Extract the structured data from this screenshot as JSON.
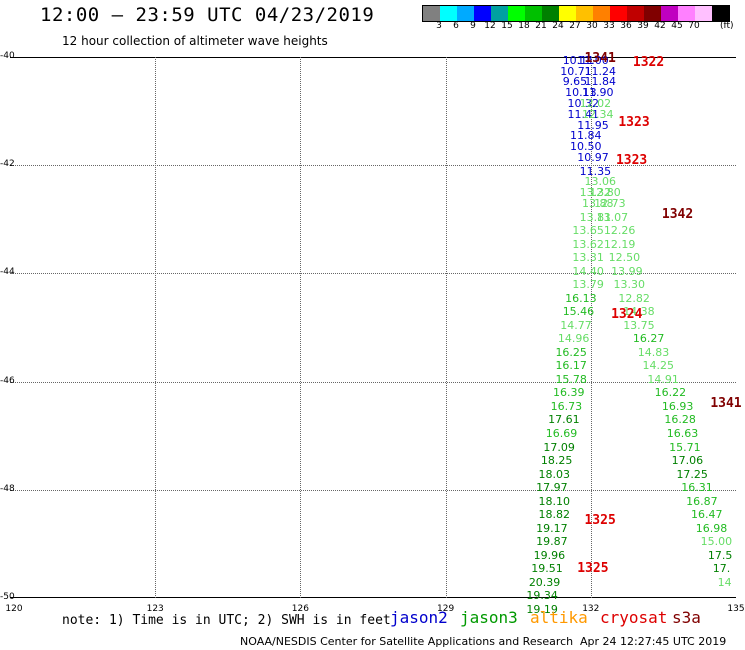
{
  "header": {
    "title": "12:00 – 23:59 UTC 04/23/2019",
    "subtitle": "12 hour collection of altimeter wave heights"
  },
  "colorbar": {
    "colors": [
      "#808080",
      "#00ffff",
      "#00aaff",
      "#0000ff",
      "#00a0a0",
      "#00ff00",
      "#00c000",
      "#008000",
      "#ffff00",
      "#ffc000",
      "#ff8000",
      "#ff0000",
      "#c00000",
      "#800000",
      "#c000c0",
      "#ff80ff",
      "#ffc0ff",
      "#000000"
    ],
    "labels": [
      "3",
      "6",
      "9",
      "12",
      "15",
      "18",
      "21",
      "24",
      "27",
      "30",
      "33",
      "36",
      "39",
      "42",
      "45",
      "70"
    ],
    "unit": "(ft)"
  },
  "axes": {
    "y_labels": [
      "-40",
      "-42",
      "-44",
      "-46",
      "-48",
      "-50"
    ],
    "x_labels": [
      "120",
      "123",
      "126",
      "129",
      "132",
      "135"
    ]
  },
  "chart_data": {
    "type": "scatter",
    "x_range": [
      120,
      135
    ],
    "y_range": [
      -50,
      -40
    ],
    "points": [
      {
        "lon": 131.75,
        "lat": -40.05,
        "v": "10.11",
        "c": "#0000cc"
      },
      {
        "lon": 132.05,
        "lat": -40.05,
        "v": "11.00",
        "c": "#0000cc"
      },
      {
        "lon": 131.7,
        "lat": -40.25,
        "v": "10.71",
        "c": "#0000cc"
      },
      {
        "lon": 132.2,
        "lat": -40.25,
        "v": "11.24",
        "c": "#0000cc"
      },
      {
        "lon": 131.75,
        "lat": -40.45,
        "v": "9.65",
        "c": "#0000cc"
      },
      {
        "lon": 132.2,
        "lat": -40.45,
        "v": "11.84",
        "c": "#0000cc"
      },
      {
        "lon": 131.8,
        "lat": -40.65,
        "v": "10.13",
        "c": "#0000cc"
      },
      {
        "lon": 132.15,
        "lat": -40.65,
        "v": "11.90",
        "c": "#0000cc"
      },
      {
        "lon": 131.85,
        "lat": -40.85,
        "v": "10.32",
        "c": "#0000cc"
      },
      {
        "lon": 132.1,
        "lat": -40.85,
        "v": "12.02",
        "c": "#66dd66"
      },
      {
        "lon": 131.85,
        "lat": -41.05,
        "v": "11.41",
        "c": "#0000cc"
      },
      {
        "lon": 132.15,
        "lat": -41.05,
        "v": "12.34",
        "c": "#66dd66"
      },
      {
        "lon": 132.05,
        "lat": -41.25,
        "v": "11.95",
        "c": "#0000cc"
      },
      {
        "lon": 131.9,
        "lat": -41.45,
        "v": "11.84",
        "c": "#0000cc"
      },
      {
        "lon": 131.9,
        "lat": -41.65,
        "v": "10.50",
        "c": "#0000cc"
      },
      {
        "lon": 132.05,
        "lat": -41.85,
        "v": "10.97",
        "c": "#0000cc"
      },
      {
        "lon": 132.1,
        "lat": -42.1,
        "v": "11.35",
        "c": "#0000cc"
      },
      {
        "lon": 132.2,
        "lat": -42.3,
        "v": "13.06",
        "c": "#66dd66"
      },
      {
        "lon": 132.1,
        "lat": -42.5,
        "v": "13.32",
        "c": "#66dd66"
      },
      {
        "lon": 132.3,
        "lat": -42.5,
        "v": "12.80",
        "c": "#66dd66"
      },
      {
        "lon": 132.15,
        "lat": -42.7,
        "v": "13.88",
        "c": "#66dd66"
      },
      {
        "lon": 132.4,
        "lat": -42.7,
        "v": "12.73",
        "c": "#66dd66"
      },
      {
        "lon": 132.1,
        "lat": -42.95,
        "v": "13.81",
        "c": "#66dd66"
      },
      {
        "lon": 132.45,
        "lat": -42.95,
        "v": "13.07",
        "c": "#66dd66"
      },
      {
        "lon": 131.95,
        "lat": -43.2,
        "v": "13.65",
        "c": "#66dd66"
      },
      {
        "lon": 132.6,
        "lat": -43.2,
        "v": "12.26",
        "c": "#66dd66"
      },
      {
        "lon": 131.95,
        "lat": -43.45,
        "v": "13.62",
        "c": "#66dd66"
      },
      {
        "lon": 132.6,
        "lat": -43.45,
        "v": "12.19",
        "c": "#66dd66"
      },
      {
        "lon": 131.95,
        "lat": -43.7,
        "v": "13.31",
        "c": "#66dd66"
      },
      {
        "lon": 132.7,
        "lat": -43.7,
        "v": "12.50",
        "c": "#66dd66"
      },
      {
        "lon": 131.95,
        "lat": -43.95,
        "v": "14.40",
        "c": "#66dd66"
      },
      {
        "lon": 132.75,
        "lat": -43.95,
        "v": "13.99",
        "c": "#66dd66"
      },
      {
        "lon": 131.95,
        "lat": -44.2,
        "v": "13.79",
        "c": "#66dd66"
      },
      {
        "lon": 132.8,
        "lat": -44.2,
        "v": "13.30",
        "c": "#66dd66"
      },
      {
        "lon": 131.8,
        "lat": -44.45,
        "v": "16.13",
        "c": "#22bb22"
      },
      {
        "lon": 132.9,
        "lat": -44.45,
        "v": "12.82",
        "c": "#66dd66"
      },
      {
        "lon": 131.75,
        "lat": -44.7,
        "v": "15.46",
        "c": "#22bb22"
      },
      {
        "lon": 133.0,
        "lat": -44.7,
        "v": "14.38",
        "c": "#66dd66"
      },
      {
        "lon": 131.7,
        "lat": -44.95,
        "v": "14.77",
        "c": "#66dd66"
      },
      {
        "lon": 133.0,
        "lat": -44.95,
        "v": "13.75",
        "c": "#66dd66"
      },
      {
        "lon": 131.65,
        "lat": -45.2,
        "v": "14.96",
        "c": "#66dd66"
      },
      {
        "lon": 133.2,
        "lat": -45.2,
        "v": "16.27",
        "c": "#22bb22"
      },
      {
        "lon": 131.6,
        "lat": -45.45,
        "v": "16.25",
        "c": "#22bb22"
      },
      {
        "lon": 133.3,
        "lat": -45.45,
        "v": "14.83",
        "c": "#66dd66"
      },
      {
        "lon": 131.6,
        "lat": -45.7,
        "v": "16.17",
        "c": "#22bb22"
      },
      {
        "lon": 133.4,
        "lat": -45.7,
        "v": "14.25",
        "c": "#66dd66"
      },
      {
        "lon": 131.6,
        "lat": -45.95,
        "v": "15.78",
        "c": "#22bb22"
      },
      {
        "lon": 133.5,
        "lat": -45.95,
        "v": "14.91",
        "c": "#66dd66"
      },
      {
        "lon": 131.55,
        "lat": -46.2,
        "v": "16.39",
        "c": "#22bb22"
      },
      {
        "lon": 133.65,
        "lat": -46.2,
        "v": "16.22",
        "c": "#22bb22"
      },
      {
        "lon": 131.5,
        "lat": -46.45,
        "v": "16.73",
        "c": "#22bb22"
      },
      {
        "lon": 133.8,
        "lat": -46.45,
        "v": "16.93",
        "c": "#22bb22"
      },
      {
        "lon": 131.45,
        "lat": -46.7,
        "v": "17.61",
        "c": "#008000"
      },
      {
        "lon": 133.85,
        "lat": -46.7,
        "v": "16.28",
        "c": "#22bb22"
      },
      {
        "lon": 131.4,
        "lat": -46.95,
        "v": "16.69",
        "c": "#22bb22"
      },
      {
        "lon": 133.9,
        "lat": -46.95,
        "v": "16.63",
        "c": "#22bb22"
      },
      {
        "lon": 131.35,
        "lat": -47.2,
        "v": "17.09",
        "c": "#008000"
      },
      {
        "lon": 133.95,
        "lat": -47.2,
        "v": "15.71",
        "c": "#22bb22"
      },
      {
        "lon": 131.3,
        "lat": -47.45,
        "v": "18.25",
        "c": "#008000"
      },
      {
        "lon": 134.0,
        "lat": -47.45,
        "v": "17.06",
        "c": "#008000"
      },
      {
        "lon": 131.25,
        "lat": -47.7,
        "v": "18.03",
        "c": "#008000"
      },
      {
        "lon": 134.1,
        "lat": -47.7,
        "v": "17.25",
        "c": "#008000"
      },
      {
        "lon": 131.2,
        "lat": -47.95,
        "v": "17.97",
        "c": "#008000"
      },
      {
        "lon": 134.2,
        "lat": -47.95,
        "v": "16.31",
        "c": "#22bb22"
      },
      {
        "lon": 131.25,
        "lat": -48.2,
        "v": "18.10",
        "c": "#008000"
      },
      {
        "lon": 134.3,
        "lat": -48.2,
        "v": "16.87",
        "c": "#22bb22"
      },
      {
        "lon": 131.25,
        "lat": -48.45,
        "v": "18.82",
        "c": "#008000"
      },
      {
        "lon": 134.4,
        "lat": -48.45,
        "v": "16.47",
        "c": "#22bb22"
      },
      {
        "lon": 131.2,
        "lat": -48.7,
        "v": "19.17",
        "c": "#008000"
      },
      {
        "lon": 134.5,
        "lat": -48.7,
        "v": "16.98",
        "c": "#22bb22"
      },
      {
        "lon": 131.2,
        "lat": -48.95,
        "v": "19.87",
        "c": "#008000"
      },
      {
        "lon": 134.6,
        "lat": -48.95,
        "v": "15.00",
        "c": "#66dd66"
      },
      {
        "lon": 131.15,
        "lat": -49.2,
        "v": "19.96",
        "c": "#008000"
      },
      {
        "lon": 134.75,
        "lat": -49.2,
        "v": "17.5",
        "c": "#008000"
      },
      {
        "lon": 131.1,
        "lat": -49.45,
        "v": "19.51",
        "c": "#008000"
      },
      {
        "lon": 134.85,
        "lat": -49.45,
        "v": "17.",
        "c": "#008000"
      },
      {
        "lon": 131.05,
        "lat": -49.7,
        "v": "20.39",
        "c": "#008000"
      },
      {
        "lon": 134.95,
        "lat": -49.7,
        "v": "14",
        "c": "#66dd66"
      },
      {
        "lon": 131.0,
        "lat": -49.95,
        "v": "19.34",
        "c": "#008000"
      },
      {
        "lon": 131.0,
        "lat": -50.2,
        "v": "19.19",
        "c": "#008000"
      }
    ],
    "passes": [
      {
        "lon": 132.2,
        "lat": -40.02,
        "v": "1341",
        "c": "#800000"
      },
      {
        "lon": 133.2,
        "lat": -40.1,
        "v": "1322",
        "c": "#dd0000"
      },
      {
        "lon": 132.9,
        "lat": -41.2,
        "v": "1323",
        "c": "#dd0000"
      },
      {
        "lon": 132.85,
        "lat": -41.9,
        "v": "1323",
        "c": "#dd0000"
      },
      {
        "lon": 133.8,
        "lat": -42.9,
        "v": "1342",
        "c": "#800000"
      },
      {
        "lon": 132.75,
        "lat": -44.75,
        "v": "1324",
        "c": "#dd0000"
      },
      {
        "lon": 134.8,
        "lat": -46.4,
        "v": "1341",
        "c": "#800000"
      },
      {
        "lon": 132.2,
        "lat": -48.55,
        "v": "1325",
        "c": "#dd0000"
      },
      {
        "lon": 132.05,
        "lat": -49.45,
        "v": "1325",
        "c": "#dd0000"
      }
    ]
  },
  "footer": {
    "note": "note: 1) Time is in UTC; 2) SWH is in feet",
    "legend": [
      {
        "name": "jason2",
        "color": "#0000cc"
      },
      {
        "name": "jason3",
        "color": "#009900"
      },
      {
        "name": "altika",
        "color": "#ff9900"
      },
      {
        "name": "cryosat",
        "color": "#dd0000"
      },
      {
        "name": "s3a",
        "color": "#800000"
      }
    ],
    "credit": "NOAA/NESDIS Center for Satellite Applications and Research",
    "timestamp": "Apr 24 12:27:45 UTC 2019"
  }
}
